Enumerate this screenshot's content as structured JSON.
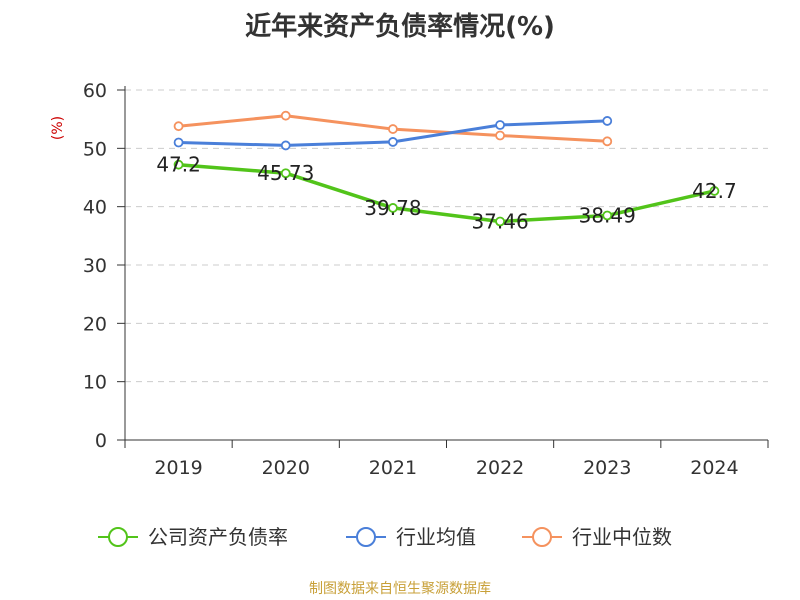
{
  "title": "近年来资产负债率情况(%)",
  "source": "制图数据来自恒生聚源数据库",
  "chart_data": {
    "type": "line",
    "title": "近年来资产负债率情况(%)",
    "ylabel": "(%)",
    "xlabel": "",
    "ylim": [
      0,
      60
    ],
    "yticks": [
      "0",
      "10",
      "20",
      "30",
      "40",
      "50",
      "60"
    ],
    "categories": [
      "2019",
      "2020",
      "2021",
      "2022",
      "2023",
      "2024"
    ],
    "grid": true,
    "legend_position": "bottom",
    "series": [
      {
        "name": "公司资产负债率",
        "color": "#52c41a",
        "values": [
          47.2,
          45.73,
          39.78,
          37.46,
          38.49,
          42.7
        ],
        "labels": [
          "47.2",
          "45.73",
          "39.78",
          "37.46",
          "38.49",
          "42.7"
        ]
      },
      {
        "name": "行业均值",
        "color": "#4a7fd9",
        "values": [
          51.0,
          50.5,
          51.1,
          54.0,
          54.7,
          null
        ]
      },
      {
        "name": "行业中位数",
        "color": "#f5925e",
        "values": [
          53.8,
          55.6,
          53.3,
          52.2,
          51.2,
          null
        ]
      }
    ]
  }
}
